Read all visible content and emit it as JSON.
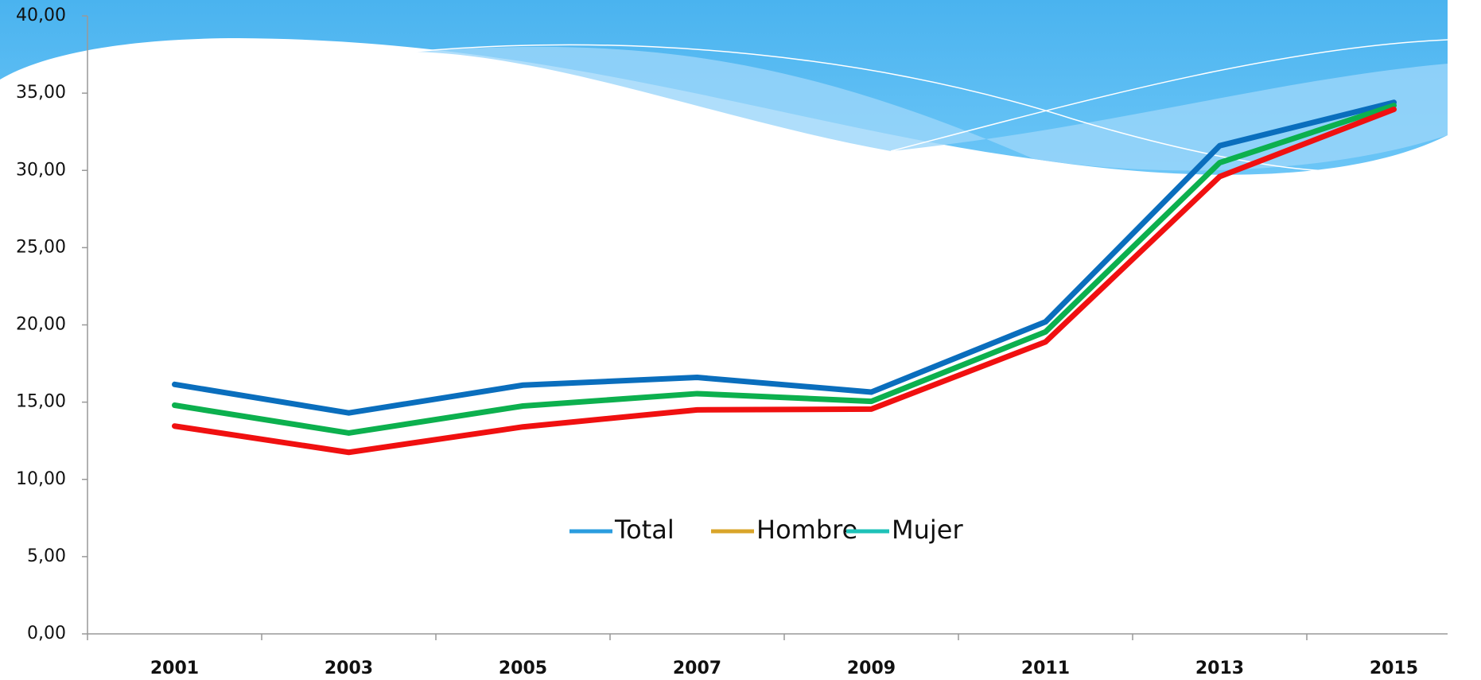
{
  "chart_data": {
    "type": "line",
    "categories": [
      "2001",
      "2003",
      "2005",
      "2007",
      "2009",
      "2011",
      "2013",
      "2015"
    ],
    "series": [
      {
        "name": "Total",
        "color": "#0a6ebd",
        "legend_color": "#2b9ddf",
        "values": [
          16.15,
          14.3,
          16.1,
          16.6,
          15.65,
          20.2,
          31.6,
          34.4
        ]
      },
      {
        "name": "Hombre",
        "color": "#f01010",
        "legend_color": "#d9a52a",
        "values": [
          13.45,
          11.75,
          13.4,
          14.5,
          14.55,
          18.9,
          29.6,
          33.95
        ]
      },
      {
        "name": "Mujer",
        "color": "#0cb04e",
        "legend_color": "#1ec2b8",
        "values": [
          14.8,
          13.0,
          14.75,
          15.55,
          15.05,
          19.55,
          30.5,
          34.2
        ]
      }
    ],
    "ylim": [
      0,
      40
    ],
    "yticks": [
      {
        "value": 0,
        "label": "0,00"
      },
      {
        "value": 5,
        "label": "5,00"
      },
      {
        "value": 10,
        "label": "10,00"
      },
      {
        "value": 15,
        "label": "15,00"
      },
      {
        "value": 20,
        "label": "20,00"
      },
      {
        "value": 25,
        "label": "25,00"
      },
      {
        "value": 30,
        "label": "30,00"
      },
      {
        "value": 35,
        "label": "35,00"
      },
      {
        "value": 40,
        "label": "40,00"
      }
    ],
    "legend": "center"
  }
}
